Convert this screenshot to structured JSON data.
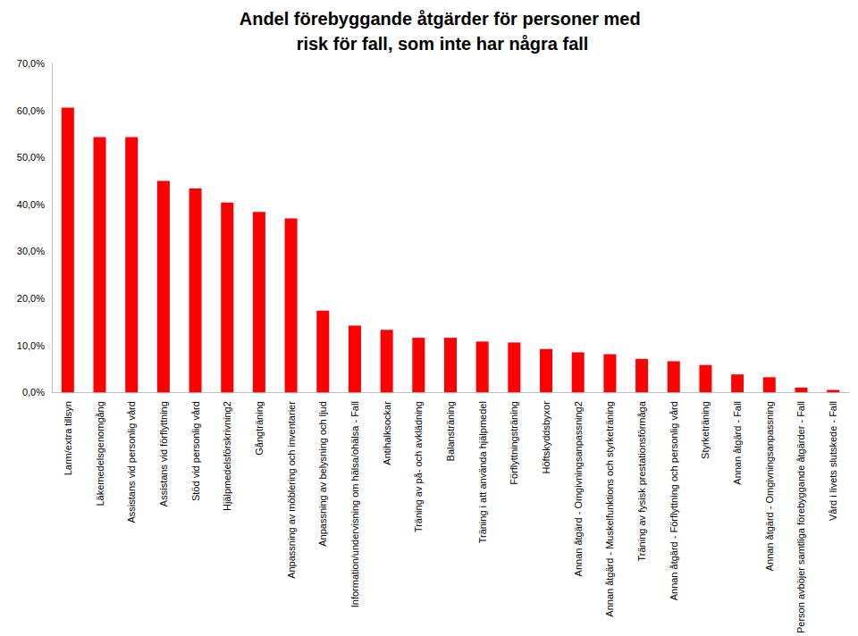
{
  "chart_data": {
    "type": "bar",
    "title": "Andel förebyggande åtgärder för personer med risk för fall, som inte har några fall",
    "categories": [
      "Larm/extra tillsyn",
      "Läkemedelsgenomgång",
      "Assistans vid personlig vård",
      "Assistans vid förflyttning",
      "Stöd vid personlig vård",
      "Hjälpmedelsförskrivning2",
      "Gångträning",
      "Anpassning av möblering och inventarier",
      "Anpassning av belysning och ljud",
      "Information/undervisning om hälsa/ohälsa - Fall",
      "Antihalksockar",
      "Träning av på- och avklädning",
      "Balansträning",
      "Träning i att använda hjälpmedel",
      "Förflyttningsträning",
      "Höftskyddsbyxor",
      "Annan åtgärd - Omgivningsanpassning2",
      "Annan åtgärd - Muskelfunktions och styrketräning",
      "Träning av fysisk prestationsförmåga",
      "Annan åtgärd - Förflyttning och personlig vård",
      "Styrketräning",
      "Annan åtgärd - Fall",
      "Annan åtgärd - Omgivningsanpassning",
      "Person avböjer samtliga förebyggande åtgärder - Fall",
      "Vård i livets slutskede - Fall"
    ],
    "values": [
      60.6,
      54.3,
      54.3,
      45.0,
      43.4,
      40.4,
      38.4,
      37.0,
      17.4,
      14.2,
      13.3,
      11.6,
      11.6,
      10.8,
      10.6,
      9.2,
      8.5,
      8.1,
      7.1,
      6.6,
      5.8,
      3.8,
      3.2,
      1.0,
      0.5
    ],
    "color": "#ff0000",
    "ylim": [
      0,
      70
    ],
    "yticks": [
      {
        "value": 0,
        "label": "0,0%"
      },
      {
        "value": 10,
        "label": "10,0%"
      },
      {
        "value": 20,
        "label": "20,0%"
      },
      {
        "value": 30,
        "label": "30,0%"
      },
      {
        "value": 40,
        "label": "40,0%"
      },
      {
        "value": 50,
        "label": "50,0%"
      },
      {
        "value": 60,
        "label": "60,0%"
      },
      {
        "value": 70,
        "label": "70,0%"
      }
    ],
    "grid": false
  }
}
